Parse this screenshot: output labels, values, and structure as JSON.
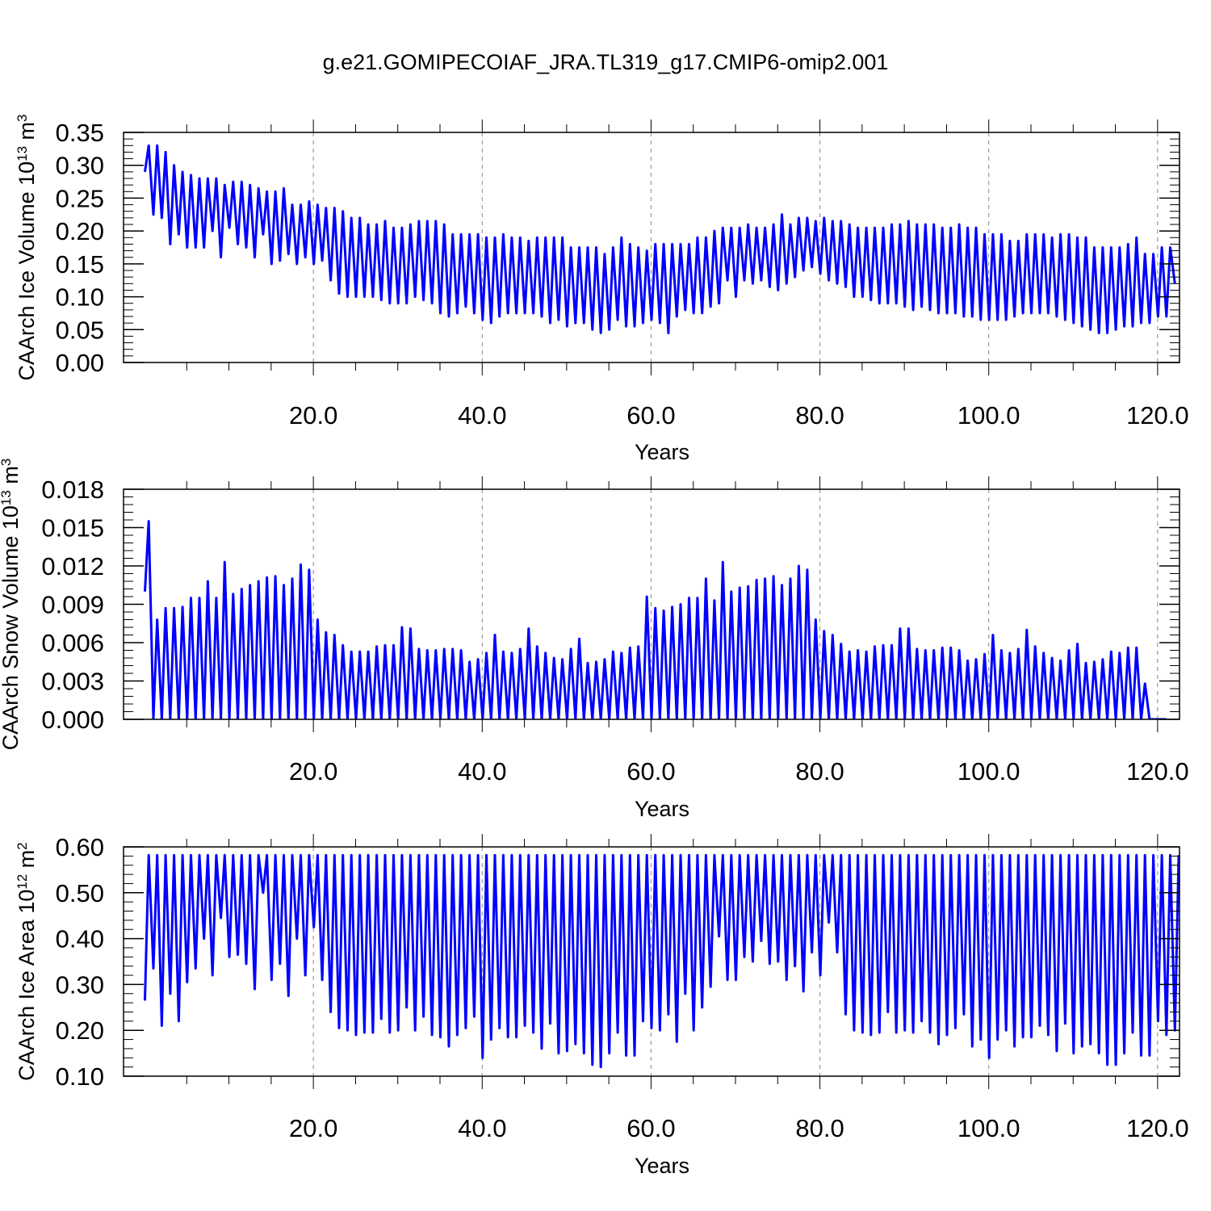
{
  "title": "g.e21.GOMIPECOIAF_JRA.TL319_g17.CMIP6-omip2.001",
  "chart_data": [
    {
      "type": "line",
      "ylabel": "CAArch Ice Volume 10",
      "ylabel_exp": "13",
      "ylabel_unit": " m",
      "ylabel_unit_exp": "3",
      "xlabel": "Years",
      "xlim": [
        0,
        122.5
      ],
      "ylim": [
        0,
        0.35
      ],
      "y_ticks": [
        "0.00",
        "0.05",
        "0.10",
        "0.15",
        "0.20",
        "0.25",
        "0.30",
        "0.35"
      ],
      "x_ticks": [
        "20.0",
        "40.0",
        "60.0",
        "80.0",
        "100.0",
        "120.0"
      ],
      "color": "#0000ff",
      "series": [
        {
          "x_start": 0,
          "x_step": 1,
          "peaks": [
            0.33,
            0.33,
            0.32,
            0.3,
            0.29,
            0.285,
            0.28,
            0.28,
            0.28,
            0.27,
            0.275,
            0.275,
            0.27,
            0.265,
            0.26,
            0.26,
            0.265,
            0.24,
            0.24,
            0.245,
            0.24,
            0.235,
            0.235,
            0.23,
            0.22,
            0.22,
            0.21,
            0.21,
            0.215,
            0.205,
            0.205,
            0.21,
            0.215,
            0.215,
            0.215,
            0.21,
            0.195,
            0.195,
            0.195,
            0.195,
            0.19,
            0.19,
            0.195,
            0.19,
            0.19,
            0.185,
            0.19,
            0.19,
            0.19,
            0.19,
            0.175,
            0.175,
            0.175,
            0.175,
            0.165,
            0.175,
            0.19,
            0.18,
            0.175,
            0.17,
            0.18,
            0.18,
            0.18,
            0.18,
            0.18,
            0.19,
            0.19,
            0.2,
            0.205,
            0.205,
            0.205,
            0.21,
            0.205,
            0.205,
            0.21,
            0.225,
            0.21,
            0.22,
            0.22,
            0.215,
            0.22,
            0.215,
            0.215,
            0.21,
            0.205,
            0.205,
            0.205,
            0.205,
            0.21,
            0.21,
            0.215,
            0.21,
            0.21,
            0.21,
            0.205,
            0.205,
            0.21,
            0.205,
            0.205,
            0.195,
            0.195,
            0.195,
            0.185,
            0.185,
            0.195,
            0.195,
            0.195,
            0.19,
            0.195,
            0.195,
            0.19,
            0.19,
            0.175,
            0.175,
            0.175,
            0.175,
            0.18,
            0.19,
            0.165,
            0.165,
            0.175,
            0.175
          ],
          "troughs": [
            0.29,
            0.225,
            0.22,
            0.18,
            0.195,
            0.175,
            0.175,
            0.175,
            0.2,
            0.16,
            0.205,
            0.18,
            0.175,
            0.16,
            0.195,
            0.15,
            0.155,
            0.165,
            0.15,
            0.16,
            0.15,
            0.155,
            0.125,
            0.105,
            0.1,
            0.1,
            0.1,
            0.1,
            0.095,
            0.09,
            0.09,
            0.09,
            0.1,
            0.095,
            0.09,
            0.075,
            0.07,
            0.075,
            0.085,
            0.075,
            0.065,
            0.06,
            0.07,
            0.075,
            0.075,
            0.075,
            0.075,
            0.07,
            0.06,
            0.065,
            0.055,
            0.06,
            0.06,
            0.05,
            0.045,
            0.05,
            0.065,
            0.055,
            0.055,
            0.06,
            0.065,
            0.06,
            0.045,
            0.07,
            0.08,
            0.075,
            0.075,
            0.085,
            0.09,
            0.125,
            0.1,
            0.125,
            0.12,
            0.125,
            0.115,
            0.11,
            0.12,
            0.13,
            0.14,
            0.145,
            0.135,
            0.125,
            0.12,
            0.115,
            0.1,
            0.1,
            0.095,
            0.09,
            0.09,
            0.09,
            0.085,
            0.08,
            0.085,
            0.08,
            0.075,
            0.075,
            0.075,
            0.07,
            0.07,
            0.065,
            0.065,
            0.065,
            0.065,
            0.07,
            0.075,
            0.075,
            0.075,
            0.075,
            0.07,
            0.065,
            0.06,
            0.055,
            0.05,
            0.045,
            0.045,
            0.05,
            0.055,
            0.055,
            0.06,
            0.06,
            0.07,
            0.07,
            0.12
          ]
        }
      ]
    },
    {
      "type": "line",
      "ylabel": "CAArch Snow Volume 10",
      "ylabel_exp": "13",
      "ylabel_unit": " m",
      "ylabel_unit_exp": "3",
      "xlabel": "Years",
      "xlim": [
        0,
        122.5
      ],
      "ylim": [
        0,
        0.018
      ],
      "y_ticks": [
        "0.000",
        "0.003",
        "0.006",
        "0.009",
        "0.012",
        "0.015",
        "0.018"
      ],
      "x_ticks": [
        "20.0",
        "40.0",
        "60.0",
        "80.0",
        "100.0",
        "120.0"
      ],
      "color": "#0000ff",
      "series": [
        {
          "x_start": 0,
          "x_step": 1,
          "peaks": [
            0.0155,
            0.0078,
            0.0087,
            0.0087,
            0.0088,
            0.0095,
            0.0095,
            0.0108,
            0.0095,
            0.0123,
            0.0098,
            0.0102,
            0.0105,
            0.0108,
            0.0111,
            0.0112,
            0.0105,
            0.011,
            0.0121,
            0.0117,
            0.0078,
            0.0068,
            0.0066,
            0.0058,
            0.0053,
            0.0053,
            0.0053,
            0.0057,
            0.0058,
            0.0058,
            0.0072,
            0.0071,
            0.0055,
            0.0054,
            0.0054,
            0.0055,
            0.0055,
            0.0054,
            0.0045,
            0.0047,
            0.0052,
            0.0066,
            0.0053,
            0.0052,
            0.0055,
            0.0071,
            0.0057,
            0.0052,
            0.0048,
            0.0047,
            0.0055,
            0.0063,
            0.0044,
            0.0045,
            0.0047,
            0.0053,
            0.0052,
            0.0056,
            0.0057,
            0.0096,
            0.0087,
            0.0085,
            0.0088,
            0.009,
            0.0095,
            0.0095,
            0.011,
            0.0093,
            0.0123,
            0.01,
            0.0103,
            0.0104,
            0.0109,
            0.011,
            0.0112,
            0.0105,
            0.011,
            0.012,
            0.0117,
            0.0078,
            0.0069,
            0.0066,
            0.0059,
            0.0053,
            0.0054,
            0.0053,
            0.0057,
            0.0058,
            0.0058,
            0.0071,
            0.0071,
            0.0055,
            0.0054,
            0.0054,
            0.0056,
            0.0056,
            0.0054,
            0.0046,
            0.0047,
            0.0051,
            0.0066,
            0.0054,
            0.0052,
            0.0055,
            0.007,
            0.0057,
            0.0052,
            0.0048,
            0.0046,
            0.0054,
            0.0059,
            0.0044,
            0.0045,
            0.0047,
            0.0053,
            0.0052,
            0.0056,
            0.0056,
            0.0028
          ],
          "troughs": [
            0.01,
            0,
            0,
            0,
            0,
            0,
            0,
            0,
            0,
            0,
            0,
            0,
            0,
            0,
            0,
            0,
            0,
            0,
            0,
            0,
            0,
            0,
            0,
            0,
            0,
            0,
            0,
            0,
            0,
            0,
            0,
            0,
            0,
            0,
            0,
            0,
            0,
            0,
            0,
            0,
            0,
            0,
            0,
            0,
            0,
            0,
            0,
            0,
            0,
            0,
            0,
            0,
            0,
            0,
            0,
            0,
            0,
            0,
            0,
            0,
            0,
            0,
            0,
            0,
            0,
            0,
            0,
            0,
            0,
            0,
            0,
            0,
            0,
            0,
            0,
            0,
            0,
            0,
            0,
            0,
            0,
            0,
            0,
            0,
            0,
            0,
            0,
            0,
            0,
            0,
            0,
            0,
            0,
            0,
            0,
            0,
            0,
            0,
            0,
            0,
            0,
            0,
            0,
            0,
            0,
            0,
            0,
            0,
            0,
            0,
            0,
            0,
            0,
            0,
            0,
            0,
            0,
            0,
            0,
            0,
            0,
            0
          ]
        }
      ]
    },
    {
      "type": "line",
      "ylabel": "CAArch Ice Area 10",
      "ylabel_exp": "12",
      "ylabel_unit": " m",
      "ylabel_unit_exp": "2",
      "xlabel": "Years",
      "xlim": [
        0,
        122.5
      ],
      "ylim": [
        0.1,
        0.6
      ],
      "y_ticks": [
        "0.10",
        "0.20",
        "0.30",
        "0.40",
        "0.50",
        "0.60"
      ],
      "x_ticks": [
        "20.0",
        "40.0",
        "60.0",
        "80.0",
        "100.0",
        "120.0"
      ],
      "color": "#0000ff",
      "series": [
        {
          "x_start": 0,
          "x_step": 1,
          "peaks": [
            0.582,
            0.582,
            0.582,
            0.582,
            0.582,
            0.582,
            0.582,
            0.582,
            0.582,
            0.582,
            0.582,
            0.582,
            0.582,
            0.582,
            0.582,
            0.582,
            0.582,
            0.582,
            0.582,
            0.582,
            0.582,
            0.582,
            0.582,
            0.582,
            0.582,
            0.582,
            0.582,
            0.582,
            0.582,
            0.582,
            0.582,
            0.582,
            0.582,
            0.582,
            0.582,
            0.582,
            0.582,
            0.582,
            0.582,
            0.582,
            0.582,
            0.582,
            0.582,
            0.582,
            0.582,
            0.582,
            0.582,
            0.582,
            0.582,
            0.582,
            0.582,
            0.582,
            0.582,
            0.582,
            0.582,
            0.582,
            0.582,
            0.582,
            0.582,
            0.582,
            0.582,
            0.582,
            0.582,
            0.582,
            0.582,
            0.582,
            0.582,
            0.582,
            0.582,
            0.582,
            0.582,
            0.582,
            0.582,
            0.582,
            0.582,
            0.582,
            0.582,
            0.582,
            0.582,
            0.582,
            0.582,
            0.582,
            0.582,
            0.582,
            0.582,
            0.582,
            0.582,
            0.582,
            0.582,
            0.582,
            0.582,
            0.582,
            0.582,
            0.582,
            0.582,
            0.582,
            0.582,
            0.582,
            0.582,
            0.582,
            0.582,
            0.582,
            0.582,
            0.582,
            0.582,
            0.582,
            0.582,
            0.582,
            0.582,
            0.582,
            0.582,
            0.582,
            0.582,
            0.582,
            0.582,
            0.582,
            0.582,
            0.582,
            0.582,
            0.582,
            0.582,
            0.582,
            0.582
          ],
          "troughs": [
            0.265,
            0.335,
            0.21,
            0.28,
            0.22,
            0.305,
            0.335,
            0.4,
            0.32,
            0.445,
            0.36,
            0.365,
            0.345,
            0.29,
            0.5,
            0.31,
            0.345,
            0.275,
            0.4,
            0.32,
            0.425,
            0.31,
            0.24,
            0.205,
            0.2,
            0.19,
            0.195,
            0.195,
            0.225,
            0.195,
            0.2,
            0.25,
            0.2,
            0.23,
            0.19,
            0.185,
            0.165,
            0.19,
            0.205,
            0.23,
            0.14,
            0.18,
            0.205,
            0.185,
            0.185,
            0.21,
            0.195,
            0.16,
            0.215,
            0.15,
            0.155,
            0.17,
            0.15,
            0.125,
            0.12,
            0.15,
            0.195,
            0.145,
            0.145,
            0.22,
            0.205,
            0.2,
            0.235,
            0.175,
            0.28,
            0.2,
            0.25,
            0.295,
            0.405,
            0.31,
            0.31,
            0.36,
            0.35,
            0.395,
            0.345,
            0.35,
            0.31,
            0.34,
            0.285,
            0.37,
            0.32,
            0.435,
            0.37,
            0.235,
            0.2,
            0.195,
            0.19,
            0.195,
            0.24,
            0.195,
            0.2,
            0.195,
            0.22,
            0.195,
            0.17,
            0.19,
            0.205,
            0.235,
            0.165,
            0.18,
            0.14,
            0.18,
            0.2,
            0.165,
            0.185,
            0.185,
            0.21,
            0.19,
            0.155,
            0.215,
            0.15,
            0.165,
            0.17,
            0.15,
            0.125,
            0.125,
            0.15,
            0.195,
            0.145,
            0.145,
            0.22,
            0.19,
            0.2
          ]
        }
      ]
    }
  ]
}
